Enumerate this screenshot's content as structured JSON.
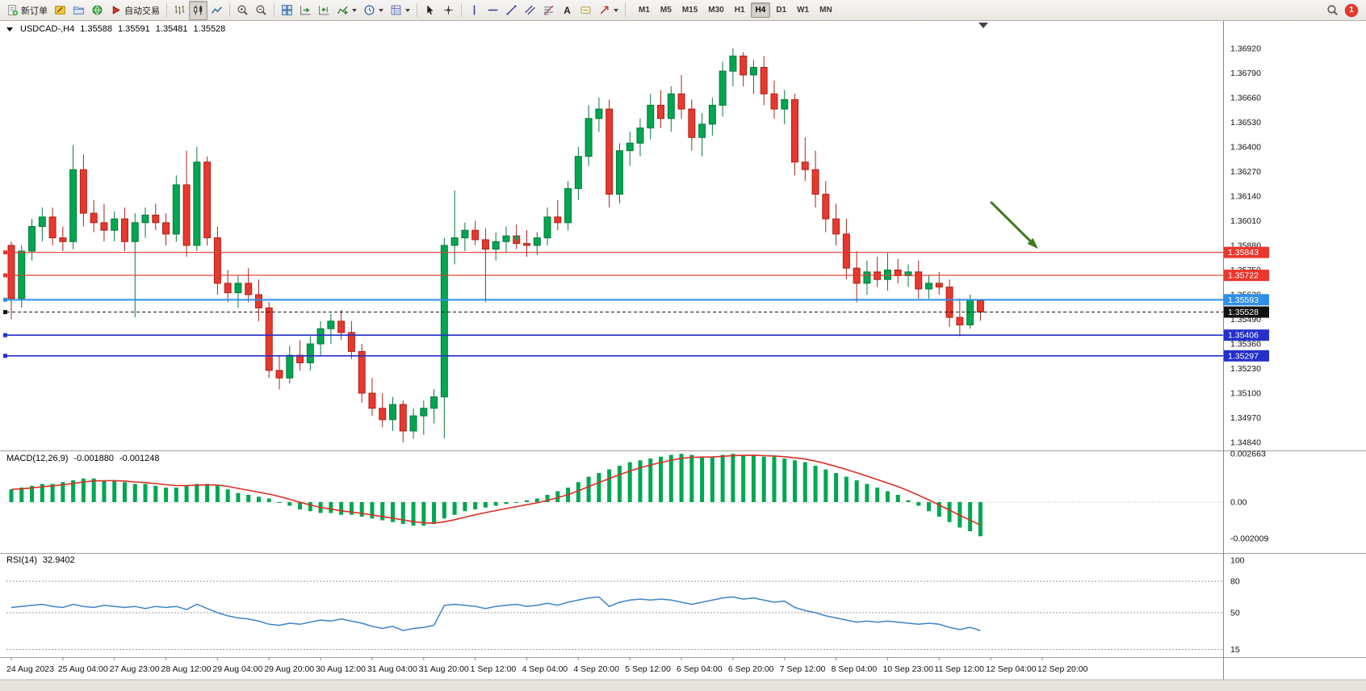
{
  "toolbar": {
    "new_order_label": "新订单",
    "auto_trading_label": "自动交易",
    "timeframes": [
      "M1",
      "M5",
      "M15",
      "M30",
      "H1",
      "H4",
      "D1",
      "W1",
      "MN"
    ],
    "active_timeframe": "H4",
    "notification_count": "1",
    "text_tool_glyph": "A"
  },
  "chart": {
    "symbol_title": "USDCAD-,H4",
    "quote": {
      "open": "1.35588",
      "high": "1.35591",
      "low": "1.35481",
      "close": "1.35528"
    }
  },
  "chart_data": {
    "type": "candlestick",
    "symbol": "USDCAD-",
    "timeframe": "H4",
    "price_axis_ticks": [
      "1.36920",
      "1.36790",
      "1.36660",
      "1.36530",
      "1.36400",
      "1.36270",
      "1.36140",
      "1.36010",
      "1.35880",
      "1.35750",
      "1.35620",
      "1.35490",
      "1.35360",
      "1.35230",
      "1.35100",
      "1.34970",
      "1.34840"
    ],
    "price_top_tick": 1.3692,
    "price_tick_step": 0.0013,
    "bars_per_label": 5,
    "time_axis": [
      "24 Aug 2023",
      "25 Aug 04:00",
      "27 Aug 23:00",
      "28 Aug 12:00",
      "29 Aug 04:00",
      "29 Aug 20:00",
      "30 Aug 12:00",
      "31 Aug 04:00",
      "31 Aug 20:00",
      "1 Sep 12:00",
      "4 Sep 04:00",
      "4 Sep 20:00",
      "5 Sep 12:00",
      "6 Sep 04:00",
      "6 Sep 20:00",
      "7 Sep 12:00",
      "8 Sep 04:00",
      "10 Sep 23:00",
      "11 Sep 12:00",
      "12 Sep 04:00",
      "12 Sep 20:00"
    ],
    "candles": [
      [
        1.3588,
        1.359,
        1.3549,
        1.356
      ],
      [
        1.356,
        1.3588,
        1.3555,
        1.3585
      ],
      [
        1.3585,
        1.3602,
        1.358,
        1.3598
      ],
      [
        1.3598,
        1.3608,
        1.359,
        1.3603
      ],
      [
        1.3603,
        1.3608,
        1.3588,
        1.3592
      ],
      [
        1.3592,
        1.3598,
        1.3585,
        1.359
      ],
      [
        1.359,
        1.3641,
        1.3586,
        1.3628
      ],
      [
        1.3628,
        1.3636,
        1.3598,
        1.3605
      ],
      [
        1.3605,
        1.3612,
        1.3595,
        1.36
      ],
      [
        1.36,
        1.361,
        1.359,
        1.3596
      ],
      [
        1.3596,
        1.3606,
        1.359,
        1.3602
      ],
      [
        1.3602,
        1.3608,
        1.3585,
        1.359
      ],
      [
        1.359,
        1.3605,
        1.355,
        1.36
      ],
      [
        1.36,
        1.3608,
        1.3592,
        1.3604
      ],
      [
        1.3604,
        1.361,
        1.3596,
        1.36
      ],
      [
        1.36,
        1.3605,
        1.3588,
        1.3594
      ],
      [
        1.3594,
        1.3625,
        1.359,
        1.362
      ],
      [
        1.362,
        1.3638,
        1.3582,
        1.3588
      ],
      [
        1.3588,
        1.364,
        1.3585,
        1.3632
      ],
      [
        1.3632,
        1.3635,
        1.3588,
        1.3592
      ],
      [
        1.3592,
        1.3598,
        1.3562,
        1.3568
      ],
      [
        1.3568,
        1.3575,
        1.3558,
        1.3563
      ],
      [
        1.3563,
        1.3572,
        1.3555,
        1.3568
      ],
      [
        1.3568,
        1.3576,
        1.3558,
        1.3562
      ],
      [
        1.3562,
        1.357,
        1.3548,
        1.3555
      ],
      [
        1.3555,
        1.3558,
        1.3518,
        1.3522
      ],
      [
        1.3522,
        1.353,
        1.3512,
        1.3518
      ],
      [
        1.3518,
        1.3535,
        1.3515,
        1.353
      ],
      [
        1.353,
        1.3538,
        1.3522,
        1.3526
      ],
      [
        1.3526,
        1.354,
        1.3522,
        1.3536
      ],
      [
        1.3536,
        1.3548,
        1.353,
        1.3544
      ],
      [
        1.3544,
        1.3552,
        1.3536,
        1.3548
      ],
      [
        1.3548,
        1.3554,
        1.3538,
        1.3542
      ],
      [
        1.3542,
        1.3548,
        1.3528,
        1.3532
      ],
      [
        1.3532,
        1.3536,
        1.3505,
        1.351
      ],
      [
        1.351,
        1.3518,
        1.3498,
        1.3502
      ],
      [
        1.3502,
        1.351,
        1.3492,
        1.3496
      ],
      [
        1.3496,
        1.3508,
        1.349,
        1.3504
      ],
      [
        1.3504,
        1.3506,
        1.3484,
        1.349
      ],
      [
        1.349,
        1.3502,
        1.3486,
        1.3498
      ],
      [
        1.3498,
        1.3506,
        1.3488,
        1.3502
      ],
      [
        1.3502,
        1.3512,
        1.3494,
        1.3508
      ],
      [
        1.3508,
        1.3592,
        1.3486,
        1.3588
      ],
      [
        1.3588,
        1.3617,
        1.3578,
        1.3592
      ],
      [
        1.3592,
        1.36,
        1.3585,
        1.3596
      ],
      [
        1.3596,
        1.3601,
        1.3588,
        1.3591
      ],
      [
        1.3591,
        1.3597,
        1.3558,
        1.3586
      ],
      [
        1.3586,
        1.3595,
        1.358,
        1.359
      ],
      [
        1.359,
        1.3598,
        1.3584,
        1.3593
      ],
      [
        1.3593,
        1.3599,
        1.3586,
        1.3589
      ],
      [
        1.3589,
        1.3596,
        1.3582,
        1.3588
      ],
      [
        1.3588,
        1.3595,
        1.3583,
        1.3592
      ],
      [
        1.3592,
        1.3608,
        1.3588,
        1.3603
      ],
      [
        1.3603,
        1.3612,
        1.3596,
        1.36
      ],
      [
        1.36,
        1.3622,
        1.3596,
        1.3618
      ],
      [
        1.3618,
        1.364,
        1.3612,
        1.3635
      ],
      [
        1.3635,
        1.3662,
        1.363,
        1.3655
      ],
      [
        1.3655,
        1.3666,
        1.3648,
        1.366
      ],
      [
        1.366,
        1.3665,
        1.3608,
        1.3615
      ],
      [
        1.3615,
        1.3642,
        1.361,
        1.3638
      ],
      [
        1.3638,
        1.3648,
        1.363,
        1.3642
      ],
      [
        1.3642,
        1.3655,
        1.3635,
        1.365
      ],
      [
        1.365,
        1.3668,
        1.3644,
        1.3662
      ],
      [
        1.3662,
        1.367,
        1.365,
        1.3655
      ],
      [
        1.3655,
        1.3672,
        1.3648,
        1.3668
      ],
      [
        1.3668,
        1.3678,
        1.3655,
        1.366
      ],
      [
        1.366,
        1.3665,
        1.3638,
        1.3645
      ],
      [
        1.3645,
        1.3658,
        1.3635,
        1.3652
      ],
      [
        1.3652,
        1.3666,
        1.3646,
        1.3662
      ],
      [
        1.3662,
        1.3685,
        1.3656,
        1.368
      ],
      [
        1.368,
        1.3692,
        1.3672,
        1.3688
      ],
      [
        1.3688,
        1.369,
        1.3672,
        1.3678
      ],
      [
        1.3678,
        1.3686,
        1.3668,
        1.3682
      ],
      [
        1.3682,
        1.3688,
        1.3662,
        1.3668
      ],
      [
        1.3668,
        1.3675,
        1.3655,
        1.366
      ],
      [
        1.366,
        1.367,
        1.3652,
        1.3665
      ],
      [
        1.3665,
        1.3668,
        1.3625,
        1.3632
      ],
      [
        1.3632,
        1.3645,
        1.3622,
        1.3628
      ],
      [
        1.3628,
        1.3638,
        1.3608,
        1.3615
      ],
      [
        1.3615,
        1.3622,
        1.3595,
        1.3602
      ],
      [
        1.3602,
        1.361,
        1.3588,
        1.3594
      ],
      [
        1.3594,
        1.3602,
        1.357,
        1.3576
      ],
      [
        1.3576,
        1.3585,
        1.3558,
        1.3568
      ],
      [
        1.3568,
        1.358,
        1.3562,
        1.3574
      ],
      [
        1.3574,
        1.3582,
        1.3566,
        1.357
      ],
      [
        1.357,
        1.3584,
        1.3564,
        1.3575
      ],
      [
        1.3575,
        1.3581,
        1.3568,
        1.3572
      ],
      [
        1.3572,
        1.3578,
        1.3566,
        1.3574
      ],
      [
        1.3574,
        1.358,
        1.356,
        1.3565
      ],
      [
        1.3565,
        1.3572,
        1.356,
        1.3568
      ],
      [
        1.3568,
        1.3574,
        1.3562,
        1.3566
      ],
      [
        1.3566,
        1.357,
        1.3545,
        1.355
      ],
      [
        1.355,
        1.356,
        1.354,
        1.3546
      ],
      [
        1.3546,
        1.3562,
        1.3544,
        1.3559
      ],
      [
        1.35588,
        1.35591,
        1.35481,
        1.35528
      ]
    ],
    "horizontal_lines": [
      {
        "price": 1.35843,
        "label": "1.35843",
        "color": "#e8382e",
        "width": 1.2,
        "style": "solid"
      },
      {
        "price": 1.35722,
        "label": "1.35722",
        "color": "#e8382e",
        "width": 1.2,
        "style": "solid"
      },
      {
        "price": 1.35593,
        "label": "1.35593",
        "color": "#2f8fe8",
        "width": 2,
        "style": "solid"
      },
      {
        "price": 1.35528,
        "label": "1.35528",
        "color": "#111111",
        "width": 1,
        "style": "dashed",
        "is_current_price": true
      },
      {
        "price": 1.35406,
        "label": "1.35406",
        "color": "#2430c8",
        "width": 1.6,
        "style": "solid"
      },
      {
        "price": 1.35297,
        "label": "1.35297",
        "color": "#2430c8",
        "width": 1.6,
        "style": "solid"
      }
    ],
    "arrow_annotation": {
      "from_slot": 95,
      "from_price": 1.3611,
      "to_slot": 99.6,
      "to_price": 1.35862,
      "color": "#3e7a1e"
    },
    "cross_marker": {
      "slot": 49,
      "price": 1.3592,
      "color": "#00a651"
    },
    "colors": {
      "up": "#00a651",
      "up_border": "#067a3c",
      "down": "#e8382e",
      "down_border": "#a8241c",
      "background": "#ffffff",
      "axis_text": "#111111"
    },
    "macd": {
      "name": "MACD(12,26,9)",
      "value_main": "-0.001880",
      "value_signal": "-0.001248",
      "axis_ticks": [
        "0.002663",
        "0.00",
        "-0.002009"
      ],
      "axis_values": [
        0.002663,
        0,
        -0.002009
      ],
      "histogram_color": "#00a651",
      "signal_color": "#d93025",
      "histogram": [
        0.0007,
        0.0008,
        0.0009,
        0.001,
        0.001,
        0.0011,
        0.0012,
        0.0013,
        0.0013,
        0.0012,
        0.0012,
        0.0011,
        0.001,
        0.001,
        0.0009,
        0.0008,
        0.0008,
        0.0009,
        0.001,
        0.001,
        0.0009,
        0.0007,
        0.0005,
        0.0004,
        0.0003,
        0.0002,
        0.0,
        -0.0002,
        -0.0004,
        -0.0005,
        -0.0006,
        -0.0006,
        -0.0007,
        -0.0007,
        -0.0008,
        -0.0009,
        -0.001,
        -0.0011,
        -0.0012,
        -0.0013,
        -0.0013,
        -0.0012,
        -0.0009,
        -0.0007,
        -0.0005,
        -0.0004,
        -0.0003,
        -0.0002,
        -0.0001,
        0.0,
        0.0001,
        0.0002,
        0.0004,
        0.0006,
        0.0008,
        0.0011,
        0.0014,
        0.0016,
        0.0018,
        0.002,
        0.0022,
        0.0023,
        0.0024,
        0.0025,
        0.0026,
        0.00266,
        0.0026,
        0.0025,
        0.0025,
        0.0026,
        0.00266,
        0.0026,
        0.0026,
        0.0025,
        0.0025,
        0.0024,
        0.0023,
        0.0022,
        0.002,
        0.0018,
        0.0016,
        0.0014,
        0.0012,
        0.001,
        0.0008,
        0.0006,
        0.0004,
        0.0001,
        -0.0002,
        -0.0005,
        -0.0008,
        -0.0011,
        -0.0014,
        -0.0016,
        -0.00188
      ]
    },
    "rsi": {
      "name": "RSI(14)",
      "value": "32.9402",
      "axis_ticks": [
        "100",
        "80",
        "50",
        "15"
      ],
      "axis_values": [
        100,
        80,
        50,
        15
      ],
      "levels": [
        80,
        50,
        15
      ],
      "color": "#3d85c8",
      "values": [
        55,
        56,
        57,
        58,
        56,
        55,
        58,
        56,
        55,
        57,
        56,
        55,
        56,
        54,
        56,
        55,
        56,
        53,
        58,
        54,
        50,
        47,
        45,
        44,
        42,
        39,
        38,
        40,
        39,
        41,
        43,
        42,
        44,
        42,
        40,
        37,
        35,
        37,
        33,
        35,
        36,
        38,
        57,
        58,
        57,
        56,
        54,
        56,
        57,
        58,
        56,
        57,
        59,
        57,
        60,
        62,
        64,
        65,
        56,
        60,
        62,
        63,
        62,
        63,
        62,
        60,
        58,
        60,
        62,
        64,
        65,
        63,
        64,
        62,
        60,
        61,
        55,
        52,
        50,
        47,
        45,
        43,
        41,
        42,
        41,
        42,
        41,
        40,
        39,
        40,
        39,
        36,
        34,
        36,
        33
      ]
    }
  }
}
